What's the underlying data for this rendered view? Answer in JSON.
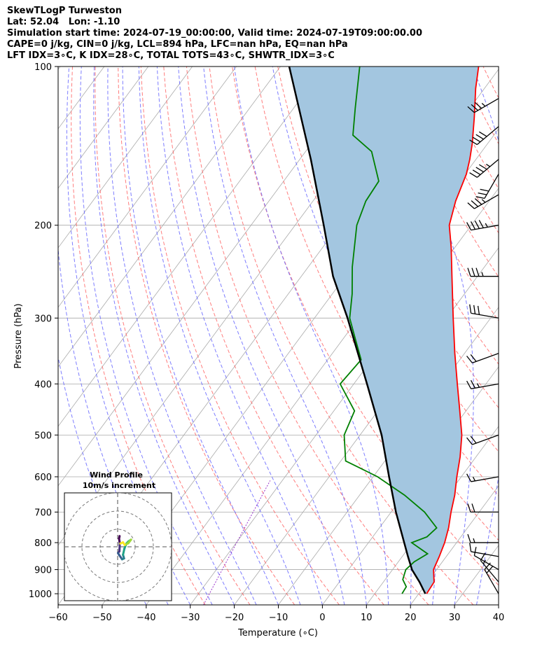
{
  "title_lines": [
    "SkewTLogP Turweston",
    "Lat: 52.04   Lon: -1.10",
    "Simulation start time: 2024-07-19_00:00:00, Valid time: 2024-07-19T09:00:00.00",
    "CAPE=0 j/kg, CIN=0 j/kg, LCL=894 hPa, LFC=nan hPa, EQ=nan hPa",
    "LFT IDX=3∘C, K IDX=28∘C, TOTAL TOTS=43∘C, SHWTR_IDX=3∘C"
  ],
  "colors": {
    "temperature": "#ff0000",
    "dewpoint": "#008000",
    "parcel": "#000000",
    "cape_fill": "#a3c6e0",
    "dry_adiabat": "#ff6666",
    "moist_adiabat": "#6666ff",
    "mixing_ratio": "#9933cc",
    "isotherm_grid": "#aaaaaa"
  },
  "chart_data": {
    "type": "skewt",
    "xlabel": "Temperature (∘C)",
    "ylabel": "Pressure (hPa)",
    "xlim": [
      -60,
      40
    ],
    "ylim": [
      1050,
      100
    ],
    "y_scale": "log",
    "x_ticks": [
      -60,
      -50,
      -40,
      -30,
      -20,
      -10,
      0,
      10,
      20,
      30,
      40
    ],
    "y_ticks": [
      1000,
      900,
      800,
      700,
      600,
      500,
      400,
      300,
      200,
      100
    ],
    "grid": true,
    "series": [
      {
        "key": "temperature",
        "points": [
          [
            1000,
            21.8
          ],
          [
            950,
            21.5
          ],
          [
            900,
            19.3
          ],
          [
            850,
            18.4
          ],
          [
            800,
            17.3
          ],
          [
            750,
            15.7
          ],
          [
            700,
            13.6
          ],
          [
            650,
            11.6
          ],
          [
            600,
            9.0
          ],
          [
            550,
            6.4
          ],
          [
            500,
            3.1
          ],
          [
            450,
            -1.4
          ],
          [
            400,
            -6.5
          ],
          [
            350,
            -12.2
          ],
          [
            300,
            -18.5
          ],
          [
            250,
            -25.8
          ],
          [
            220,
            -30.9
          ],
          [
            200,
            -35.0
          ],
          [
            180,
            -37.6
          ],
          [
            160,
            -39.7
          ],
          [
            150,
            -41.4
          ],
          [
            140,
            -43.5
          ],
          [
            125,
            -47.4
          ],
          [
            110,
            -52.0
          ],
          [
            100,
            -55.0
          ]
        ]
      },
      {
        "key": "dewpoint",
        "points": [
          [
            1000,
            16.2
          ],
          [
            970,
            16.0
          ],
          [
            940,
            14.0
          ],
          [
            900,
            13.0
          ],
          [
            870,
            13.6
          ],
          [
            840,
            15.3
          ],
          [
            800,
            9.8
          ],
          [
            780,
            12.3
          ],
          [
            750,
            13.0
          ],
          [
            700,
            7.6
          ],
          [
            650,
            0.2
          ],
          [
            600,
            -9.0
          ],
          [
            560,
            -18.9
          ],
          [
            500,
            -23.6
          ],
          [
            450,
            -25.3
          ],
          [
            400,
            -33.1
          ],
          [
            360,
            -32.4
          ],
          [
            330,
            -37.0
          ],
          [
            300,
            -42.0
          ],
          [
            270,
            -45.5
          ],
          [
            240,
            -50.0
          ],
          [
            200,
            -56.0
          ],
          [
            180,
            -58.0
          ],
          [
            165,
            -58.4
          ],
          [
            145,
            -65.0
          ],
          [
            135,
            -72.0
          ],
          [
            120,
            -76.0
          ],
          [
            100,
            -82.0
          ]
        ]
      },
      {
        "key": "parcel",
        "points": [
          [
            1000,
            21.5
          ],
          [
            950,
            18.2
          ],
          [
            900,
            14.4
          ],
          [
            850,
            11.3
          ],
          [
            800,
            8.1
          ],
          [
            700,
            1.1
          ],
          [
            600,
            -6.4
          ],
          [
            500,
            -15.1
          ],
          [
            400,
            -27.0
          ],
          [
            300,
            -42.5
          ],
          [
            250,
            -52.8
          ],
          [
            200,
            -63.5
          ],
          [
            150,
            -77.5
          ],
          [
            100,
            -98.0
          ]
        ]
      }
    ],
    "wind_barbs": [
      [
        1000,
        330,
        20
      ],
      [
        950,
        320,
        15
      ],
      [
        900,
        300,
        10
      ],
      [
        850,
        280,
        10
      ],
      [
        800,
        270,
        15
      ],
      [
        700,
        270,
        20
      ],
      [
        600,
        260,
        15
      ],
      [
        500,
        250,
        20
      ],
      [
        400,
        260,
        25
      ],
      [
        350,
        250,
        20
      ],
      [
        300,
        280,
        30
      ],
      [
        250,
        270,
        35
      ],
      [
        200,
        260,
        45
      ],
      [
        175,
        240,
        35
      ],
      [
        160,
        210,
        30
      ],
      [
        150,
        230,
        45
      ],
      [
        130,
        230,
        40
      ],
      [
        115,
        240,
        35
      ]
    ],
    "wind_profile": {
      "title_lines": [
        "Wind Profile",
        "10m/s increment"
      ],
      "rings": 3,
      "points": [
        [
          1.1,
          6.0
        ],
        [
          0.8,
          4.5
        ],
        [
          1.2,
          2.0
        ],
        [
          1.0,
          -2.5
        ],
        [
          0.2,
          -3.5
        ],
        [
          0.8,
          -4.5
        ],
        [
          2.5,
          -7.0
        ],
        [
          3.6,
          -6.5
        ],
        [
          3.0,
          -4.5
        ],
        [
          3.8,
          -1.0
        ],
        [
          5.0,
          2.0
        ],
        [
          6.0,
          3.0
        ],
        [
          7.5,
          4.0
        ],
        [
          6.0,
          2.0
        ],
        [
          4.0,
          1.0
        ],
        [
          3.0,
          2.5
        ],
        [
          1.5,
          1.8
        ]
      ]
    }
  }
}
